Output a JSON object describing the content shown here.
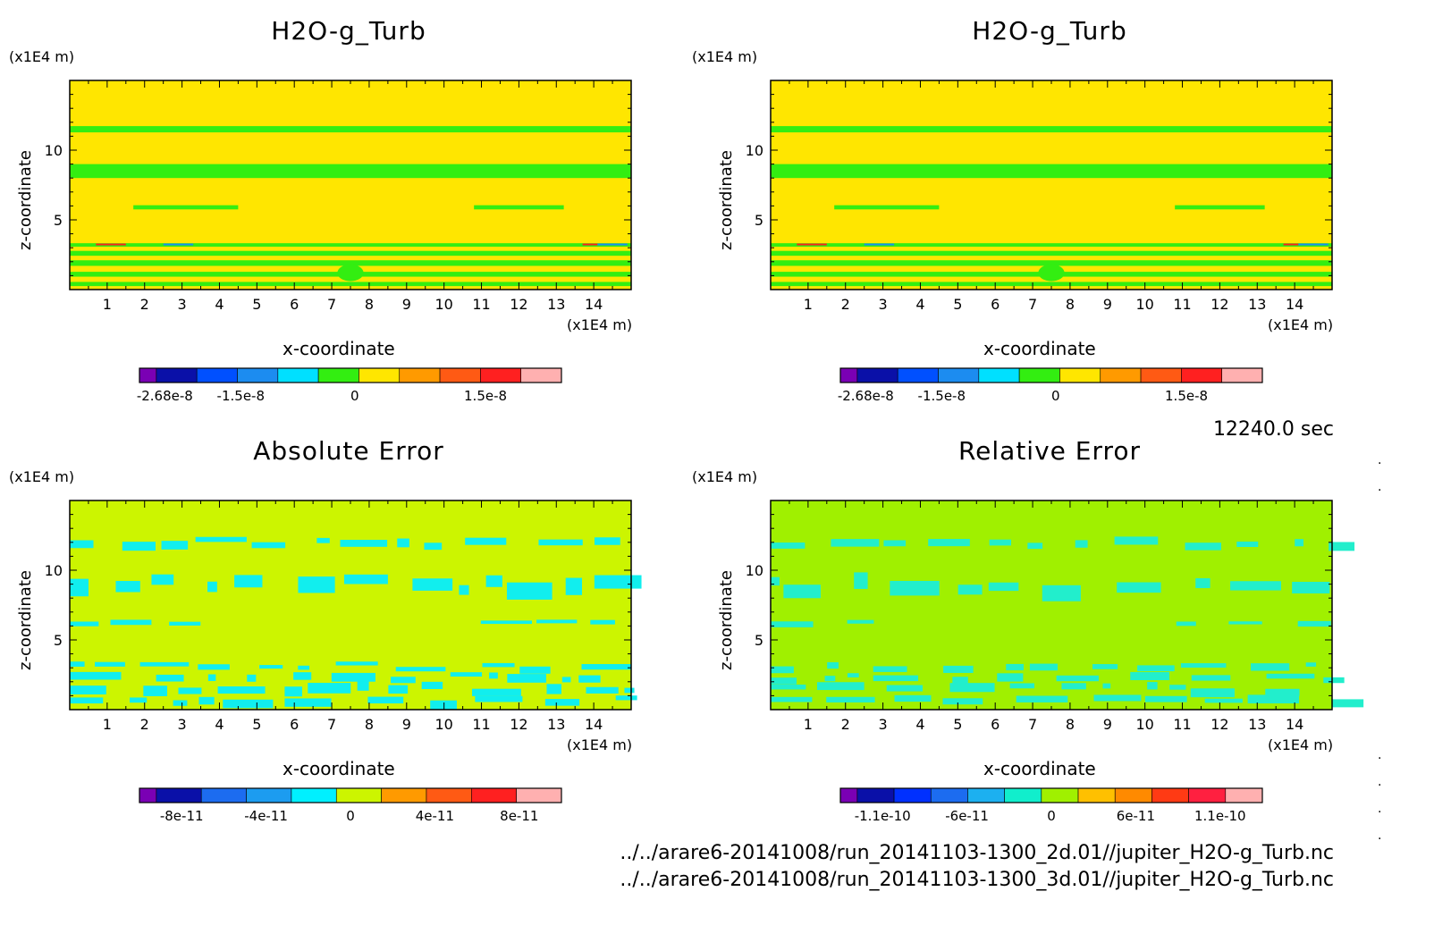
{
  "panels": [
    {
      "title": "H2O-g_Turb",
      "z_unit": "(x1E4 m)",
      "x_unit": "(x1E4 m)",
      "xlabel": "x-coordinate",
      "ylabel": "z-coordinate",
      "x_ticks": [
        "1",
        "2",
        "3",
        "4",
        "5",
        "6",
        "7",
        "8",
        "9",
        "10",
        "11",
        "12",
        "13",
        "14"
      ],
      "y_ticks": [
        "5",
        "10"
      ],
      "background": "#ffe600",
      "band_color": "#33ee11",
      "colorbar": {
        "colors": [
          "#7a00b4",
          "#0a10a8",
          "#0050ff",
          "#1c8cf0",
          "#00e0ff",
          "#33ee11",
          "#ffe600",
          "#ff9a00",
          "#ff5a14",
          "#ff2020",
          "#ffb0b0"
        ],
        "labels": [
          "-2.68e-8",
          "-1.5e-8",
          "0",
          "1.5e-8"
        ]
      }
    },
    {
      "title": "H2O-g_Turb",
      "z_unit": "(x1E4 m)",
      "x_unit": "(x1E4 m)",
      "xlabel": "x-coordinate",
      "ylabel": "z-coordinate",
      "x_ticks": [
        "1",
        "2",
        "3",
        "4",
        "5",
        "6",
        "7",
        "8",
        "9",
        "10",
        "11",
        "12",
        "13",
        "14"
      ],
      "y_ticks": [
        "5",
        "10"
      ],
      "background": "#ffe600",
      "band_color": "#33ee11",
      "colorbar": {
        "colors": [
          "#7a00b4",
          "#0a10a8",
          "#0050ff",
          "#1c8cf0",
          "#00e0ff",
          "#33ee11",
          "#ffe600",
          "#ff9a00",
          "#ff5a14",
          "#ff2020",
          "#ffb0b0"
        ],
        "labels": [
          "-2.68e-8",
          "-1.5e-8",
          "0",
          "1.5e-8"
        ]
      }
    },
    {
      "title": "Absolute Error",
      "z_unit": "(x1E4 m)",
      "x_unit": "(x1E4 m)",
      "xlabel": "x-coordinate",
      "ylabel": "z-coordinate",
      "x_ticks": [
        "1",
        "2",
        "3",
        "4",
        "5",
        "6",
        "7",
        "8",
        "9",
        "10",
        "11",
        "12",
        "13",
        "14"
      ],
      "y_ticks": [
        "5",
        "10"
      ],
      "background": "#ccf500",
      "band_color": "#11eeee",
      "colorbar": {
        "colors": [
          "#7a00b4",
          "#0a10a8",
          "#1c6cf0",
          "#1c9cf0",
          "#00f0ff",
          "#ccf500",
          "#ff9a00",
          "#ff5a14",
          "#ff2020",
          "#ffb0b0"
        ],
        "labels": [
          "-8e-11",
          "-4e-11",
          "0",
          "4e-11",
          "8e-11"
        ]
      }
    },
    {
      "title": "Relative Error",
      "z_unit": "(x1E4 m)",
      "x_unit": "(x1E4 m)",
      "xlabel": "x-coordinate",
      "ylabel": "z-coordinate",
      "x_ticks": [
        "1",
        "2",
        "3",
        "4",
        "5",
        "6",
        "7",
        "8",
        "9",
        "10",
        "11",
        "12",
        "13",
        "14"
      ],
      "y_ticks": [
        "5",
        "10"
      ],
      "background": "#a0f000",
      "band_color": "#22eecc",
      "colorbar": {
        "colors": [
          "#7a00b4",
          "#0a10a8",
          "#0030ff",
          "#1c6cf0",
          "#1cb0f0",
          "#11eecc",
          "#a0f000",
          "#ffc000",
          "#ff8a00",
          "#ff3a14",
          "#ff2040",
          "#ffb0b0"
        ],
        "labels": [
          "-1.1e-10",
          "-6e-11",
          "0",
          "6e-11",
          "1.1e-10"
        ]
      }
    }
  ],
  "time_label": "12240.0 sec",
  "source_files": [
    "../../arare6-20141008/run_20141103-1300_2d.01//jupiter_H2O-g_Turb.nc",
    "../../arare6-20141008/run_20141103-1300_3d.01//jupiter_H2O-g_Turb.nc"
  ],
  "chart_data": [
    {
      "type": "heatmap",
      "title": "H2O-g_Turb",
      "xlabel": "x-coordinate",
      "ylabel": "z-coordinate",
      "xlim": [
        0,
        15
      ],
      "ylim": [
        0,
        15
      ],
      "x_ticks": [
        1,
        2,
        3,
        4,
        5,
        6,
        7,
        8,
        9,
        10,
        11,
        12,
        13,
        14
      ],
      "y_ticks": [
        5,
        10
      ],
      "colorbar_ticks": [
        "-2.68e-8",
        "-1.5e-8",
        "0",
        "1.5e-8"
      ],
      "grid": false
    },
    {
      "type": "heatmap",
      "title": "H2O-g_Turb",
      "xlabel": "x-coordinate",
      "ylabel": "z-coordinate",
      "xlim": [
        0,
        15
      ],
      "ylim": [
        0,
        15
      ],
      "x_ticks": [
        1,
        2,
        3,
        4,
        5,
        6,
        7,
        8,
        9,
        10,
        11,
        12,
        13,
        14
      ],
      "y_ticks": [
        5,
        10
      ],
      "colorbar_ticks": [
        "-2.68e-8",
        "-1.5e-8",
        "0",
        "1.5e-8"
      ],
      "grid": false
    },
    {
      "type": "heatmap",
      "title": "Absolute Error",
      "xlabel": "x-coordinate",
      "ylabel": "z-coordinate",
      "xlim": [
        0,
        15
      ],
      "ylim": [
        0,
        15
      ],
      "x_ticks": [
        1,
        2,
        3,
        4,
        5,
        6,
        7,
        8,
        9,
        10,
        11,
        12,
        13,
        14
      ],
      "y_ticks": [
        5,
        10
      ],
      "colorbar_ticks": [
        "-8e-11",
        "-4e-11",
        "0",
        "4e-11",
        "8e-11"
      ],
      "grid": false
    },
    {
      "type": "heatmap",
      "title": "Relative Error",
      "xlabel": "x-coordinate",
      "ylabel": "z-coordinate",
      "xlim": [
        0,
        15
      ],
      "ylim": [
        0,
        15
      ],
      "x_ticks": [
        1,
        2,
        3,
        4,
        5,
        6,
        7,
        8,
        9,
        10,
        11,
        12,
        13,
        14
      ],
      "y_ticks": [
        5,
        10
      ],
      "colorbar_ticks": [
        "-1.1e-10",
        "-6e-11",
        "0",
        "6e-11",
        "1.1e-10"
      ],
      "grid": false
    }
  ]
}
